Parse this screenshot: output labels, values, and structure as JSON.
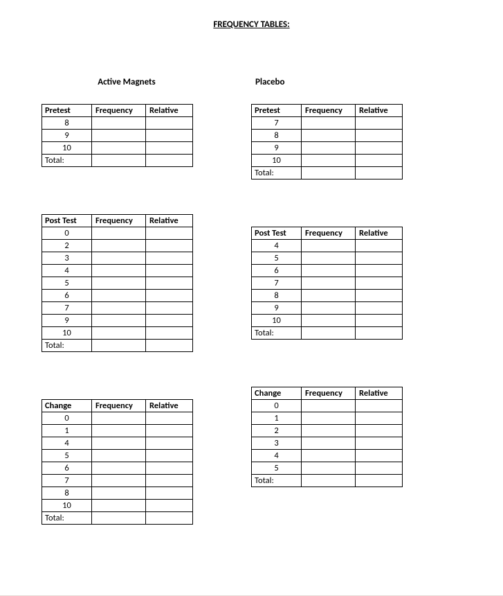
{
  "page_title": "FREQUENCY TABLES:",
  "headings": {
    "left": "Active Magnets",
    "right": "Placebo"
  },
  "cols": {
    "frequency": "Frequency",
    "relative": "Relative",
    "total": "Total:"
  },
  "left": {
    "pretest": {
      "label": "Pretest",
      "rows": [
        "8",
        "9",
        "10"
      ]
    },
    "posttest": {
      "label": "Post Test",
      "rows": [
        "0",
        "2",
        "3",
        "4",
        "5",
        "6",
        "7",
        "9",
        "10"
      ]
    },
    "change": {
      "label": "Change",
      "rows": [
        "0",
        "1",
        "4",
        "5",
        "6",
        "7",
        "8",
        "10"
      ]
    }
  },
  "right": {
    "pretest": {
      "label": "Pretest",
      "rows": [
        "7",
        "8",
        "9",
        "10"
      ]
    },
    "posttest": {
      "label": "Post Test",
      "rows": [
        "4",
        "5",
        "6",
        "7",
        "8",
        "9",
        "10"
      ]
    },
    "change": {
      "label": "Change",
      "rows": [
        "0",
        "1",
        "2",
        "3",
        "4",
        "5"
      ]
    }
  }
}
